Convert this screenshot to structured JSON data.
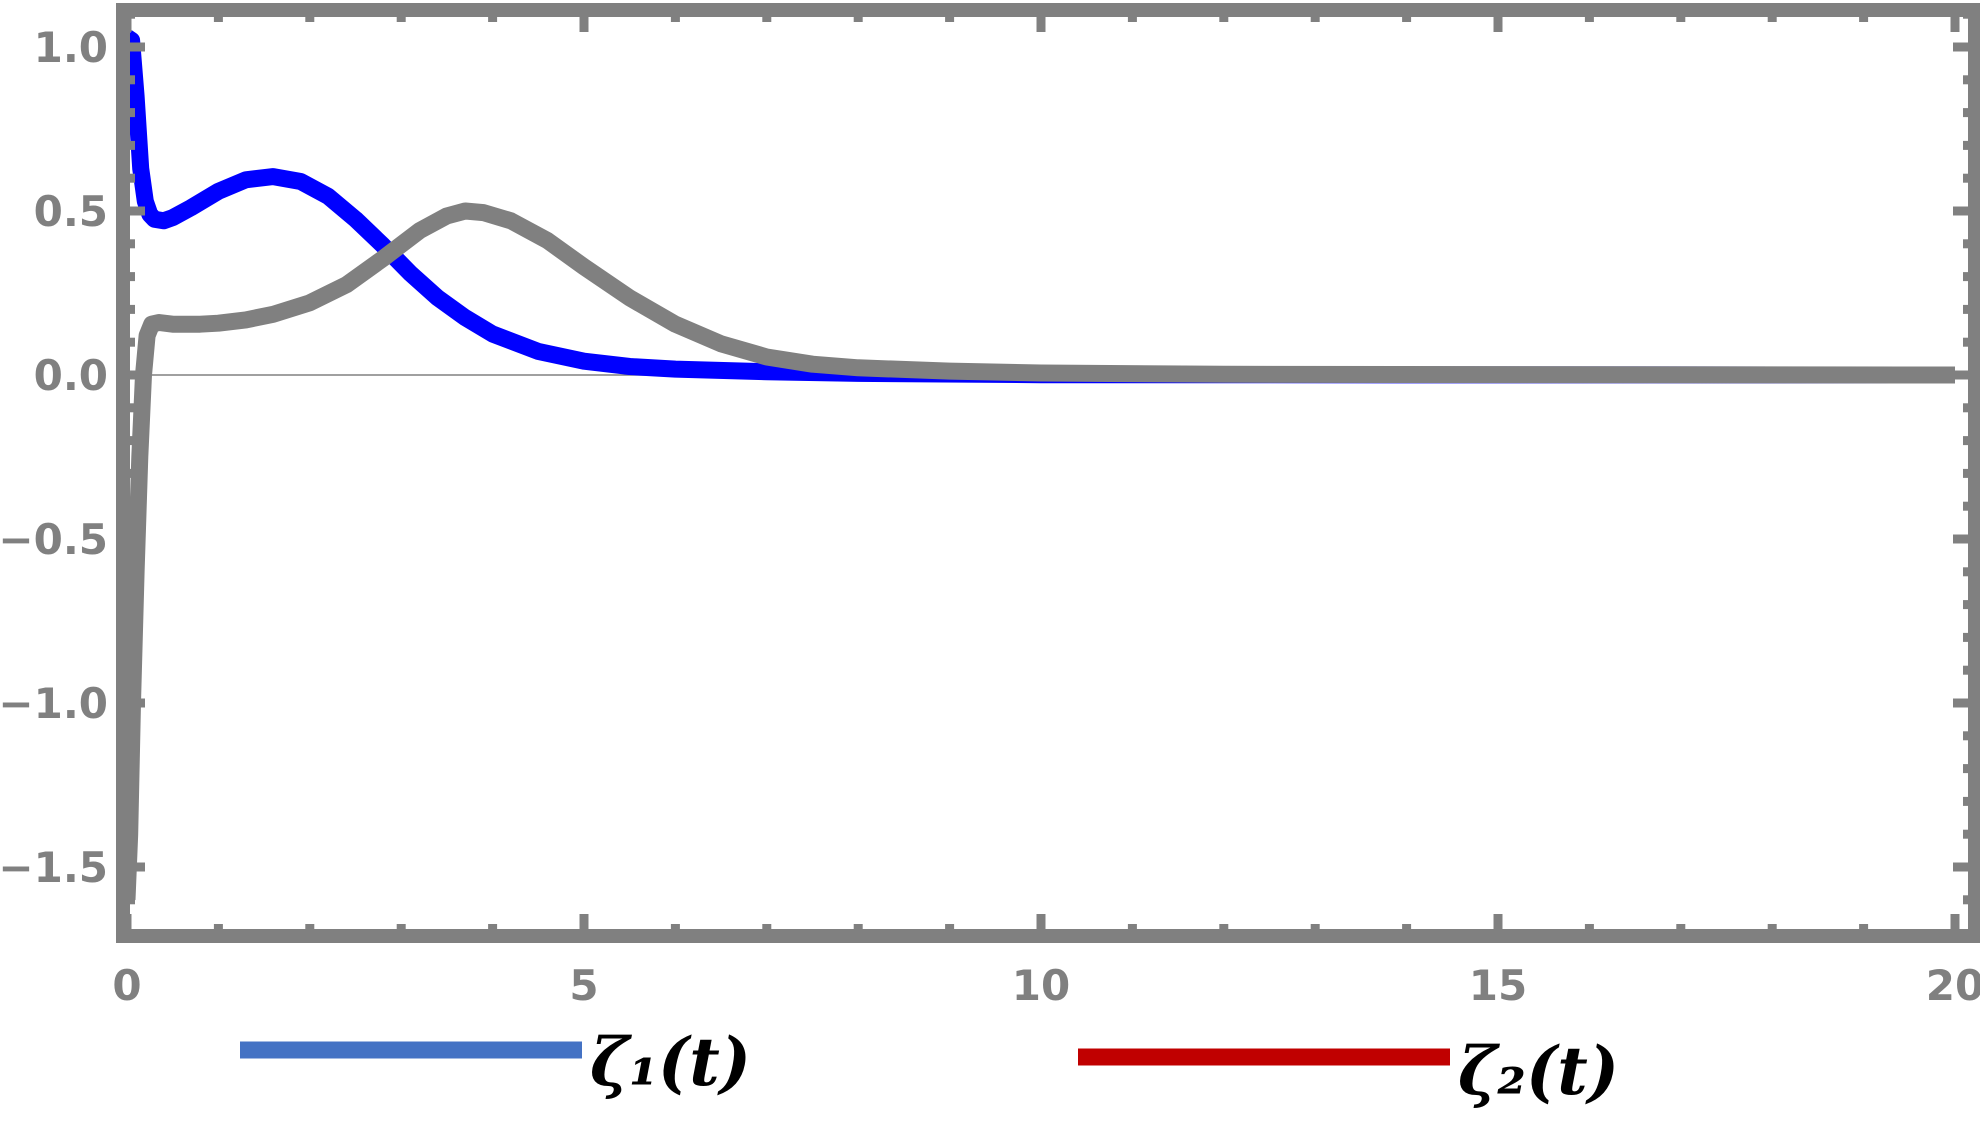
{
  "chart_data": {
    "type": "line",
    "title": "",
    "xlabel": "",
    "ylabel": "",
    "xlim": [
      -0.4,
      20.5
    ],
    "ylim": [
      -1.73,
      1.15
    ],
    "x_ticks": [
      0,
      5,
      10,
      15,
      20
    ],
    "x_tick_labels": [
      "0",
      "5",
      "10",
      "15",
      "20"
    ],
    "y_ticks": [
      1.0,
      0.5,
      0.0,
      -0.5,
      -1.0,
      -1.5
    ],
    "y_tick_labels": [
      "1.0",
      "0.5",
      "0.0",
      "−0.5",
      "−1.0",
      "−1.5"
    ],
    "zero_line": true,
    "grid": false,
    "legend_position": "bottom",
    "colors": {
      "frame": "#808080",
      "zero_line": "#808080",
      "series_blue": "#0000ff",
      "series_gray": "#808080",
      "legend_swatch_1": "#4472c4",
      "legend_swatch_2": "#c00000"
    },
    "legend": [
      {
        "label": "ζ₁(t)",
        "color": "#4472c4"
      },
      {
        "label": "ζ₂(t)",
        "color": "#c00000"
      }
    ],
    "series": [
      {
        "color": "#0000ff",
        "points": [
          [
            0,
            1.03
          ],
          [
            0.05,
            1.02
          ],
          [
            0.1,
            0.85
          ],
          [
            0.15,
            0.63
          ],
          [
            0.2,
            0.53
          ],
          [
            0.25,
            0.49
          ],
          [
            0.3,
            0.475
          ],
          [
            0.4,
            0.47
          ],
          [
            0.5,
            0.48
          ],
          [
            0.7,
            0.51
          ],
          [
            1.0,
            0.56
          ],
          [
            1.3,
            0.595
          ],
          [
            1.6,
            0.605
          ],
          [
            1.9,
            0.59
          ],
          [
            2.2,
            0.545
          ],
          [
            2.5,
            0.475
          ],
          [
            2.8,
            0.395
          ],
          [
            3.1,
            0.31
          ],
          [
            3.4,
            0.235
          ],
          [
            3.7,
            0.175
          ],
          [
            4.0,
            0.125
          ],
          [
            4.5,
            0.072
          ],
          [
            5.0,
            0.042
          ],
          [
            5.5,
            0.026
          ],
          [
            6.0,
            0.018
          ],
          [
            7.0,
            0.01
          ],
          [
            8.0,
            0.005
          ],
          [
            10.0,
            0.001
          ],
          [
            20.0,
            0.0
          ]
        ]
      },
      {
        "color": "#808080",
        "points": [
          [
            0,
            -1.6
          ],
          [
            0.03,
            -1.4
          ],
          [
            0.06,
            -1.0
          ],
          [
            0.1,
            -0.6
          ],
          [
            0.14,
            -0.25
          ],
          [
            0.18,
            0.0
          ],
          [
            0.22,
            0.12
          ],
          [
            0.27,
            0.155
          ],
          [
            0.35,
            0.16
          ],
          [
            0.5,
            0.155
          ],
          [
            0.8,
            0.155
          ],
          [
            1.0,
            0.158
          ],
          [
            1.3,
            0.168
          ],
          [
            1.6,
            0.185
          ],
          [
            2.0,
            0.22
          ],
          [
            2.4,
            0.275
          ],
          [
            2.8,
            0.355
          ],
          [
            3.2,
            0.44
          ],
          [
            3.5,
            0.485
          ],
          [
            3.7,
            0.5
          ],
          [
            3.9,
            0.495
          ],
          [
            4.2,
            0.47
          ],
          [
            4.6,
            0.41
          ],
          [
            5.0,
            0.33
          ],
          [
            5.5,
            0.235
          ],
          [
            6.0,
            0.155
          ],
          [
            6.5,
            0.095
          ],
          [
            7.0,
            0.055
          ],
          [
            7.5,
            0.033
          ],
          [
            8.0,
            0.022
          ],
          [
            9.0,
            0.012
          ],
          [
            10.0,
            0.006
          ],
          [
            12.0,
            0.002
          ],
          [
            20.0,
            0.0
          ]
        ]
      }
    ]
  }
}
